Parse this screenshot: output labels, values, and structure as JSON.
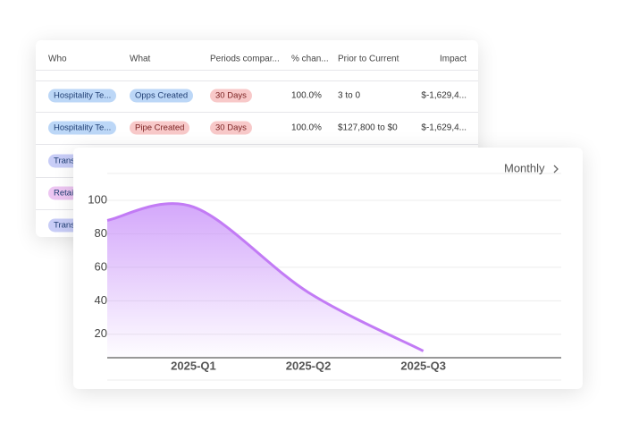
{
  "table": {
    "headers": [
      "Who",
      "What",
      "Periods compar...",
      "% chan...",
      "Prior to Current",
      "Impact"
    ],
    "rows": [
      [
        "Hospitality Te...",
        "Opps Created",
        "30 Days",
        "100.0%",
        "3 to 0",
        "$-1,629,4..."
      ],
      [
        "Hospitality Te...",
        "Pipe Created",
        "30 Days",
        "100.0%",
        "$127,800 to $0",
        "$-1,629,4..."
      ],
      [
        "Trans"
      ],
      [
        "Retai"
      ],
      [
        "Trans"
      ]
    ]
  },
  "period_selector": "Monthly",
  "chart_data": {
    "type": "area",
    "categories": [
      null,
      "2025-Q1",
      "2025-Q2",
      "2025-Q3"
    ],
    "values": [
      88,
      96,
      45,
      10
    ],
    "color": "#c27bf5",
    "smooth": true,
    "grid": true,
    "ylim": [
      6,
      108
    ],
    "yticks": [
      20,
      40,
      60,
      80,
      100
    ]
  }
}
